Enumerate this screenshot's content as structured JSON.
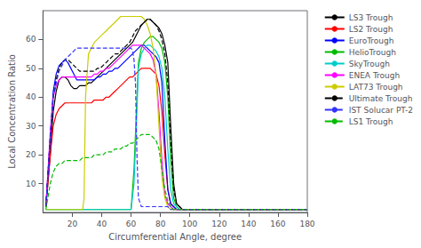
{
  "chart_data": {
    "type": "line",
    "xlabel": "Circumferential Angle, degree",
    "ylabel": "Local Concentration Ratio",
    "xlim": [
      0,
      180
    ],
    "ylim": [
      0,
      70
    ],
    "xticks": [
      20,
      40,
      60,
      80,
      100,
      120,
      140,
      160,
      180
    ],
    "yticks": [
      10,
      20,
      30,
      40,
      50,
      60
    ],
    "grid": false,
    "legend": "upper right",
    "series": [
      {
        "name": "LS3 Trough",
        "color": "#000000",
        "line_style": "solid",
        "x": [
          2,
          5,
          7,
          9,
          11,
          13,
          15,
          17,
          19,
          21,
          23,
          25,
          27,
          29,
          31,
          33,
          35,
          37,
          39,
          41,
          43,
          45,
          47,
          49,
          51,
          53,
          55,
          57,
          59,
          61,
          63,
          65,
          67,
          69,
          71,
          73,
          75,
          77,
          79,
          81,
          83,
          85,
          87,
          89,
          91,
          93,
          95,
          97,
          100,
          110,
          120,
          130,
          140,
          160,
          180
        ],
        "values": [
          2,
          20,
          35,
          42,
          46,
          47,
          47,
          46,
          44,
          43,
          43,
          44,
          44,
          44,
          45,
          45,
          46,
          47,
          48,
          49,
          50,
          51,
          52,
          53,
          54,
          55,
          56,
          57,
          58,
          59,
          61,
          63,
          65,
          66,
          67,
          67,
          66,
          65,
          64,
          62,
          58,
          52,
          30,
          10,
          3,
          2,
          1,
          1,
          1,
          1,
          1,
          1,
          1,
          1,
          1
        ]
      },
      {
        "name": "LS2 Trough",
        "color": "#ff0000",
        "line_style": "solid",
        "x": [
          2,
          5,
          7,
          9,
          11,
          13,
          15,
          17,
          19,
          21,
          23,
          25,
          27,
          29,
          31,
          33,
          35,
          37,
          39,
          41,
          43,
          45,
          47,
          49,
          51,
          53,
          55,
          57,
          59,
          61,
          63,
          65,
          67,
          69,
          71,
          73,
          75,
          77,
          79,
          81,
          83,
          85,
          87,
          89,
          91,
          95,
          100,
          110,
          120,
          140,
          160,
          180
        ],
        "values": [
          2,
          20,
          30,
          34,
          36,
          37,
          38,
          38,
          38,
          38,
          38,
          38,
          38,
          38,
          38,
          38,
          39,
          39,
          39,
          39,
          40,
          40,
          41,
          42,
          43,
          44,
          45,
          46,
          47,
          47,
          48,
          49,
          50,
          50,
          50,
          50,
          49,
          48,
          44,
          35,
          20,
          8,
          3,
          2,
          1,
          1,
          1,
          1,
          1,
          1,
          1,
          1
        ]
      },
      {
        "name": "EuroTrough",
        "color": "#0000ff",
        "line_style": "solid",
        "x": [
          2,
          5,
          7,
          9,
          11,
          13,
          15,
          17,
          19,
          21,
          23,
          25,
          27,
          29,
          31,
          33,
          35,
          37,
          39,
          41,
          43,
          45,
          47,
          49,
          51,
          53,
          55,
          57,
          59,
          61,
          63,
          65,
          67,
          69,
          71,
          73,
          75,
          77,
          79,
          81,
          83,
          85,
          87,
          89,
          91,
          95,
          100,
          110,
          120,
          140,
          160,
          180
        ],
        "values": [
          2,
          26,
          42,
          48,
          51,
          52,
          53,
          52,
          50,
          48,
          46,
          46,
          46,
          46,
          46,
          46,
          46,
          47,
          47,
          48,
          48,
          49,
          49,
          50,
          50,
          51,
          52,
          53,
          54,
          55,
          56,
          57,
          58,
          58,
          57,
          56,
          55,
          54,
          52,
          45,
          25,
          8,
          3,
          2,
          1,
          1,
          1,
          1,
          1,
          1,
          1,
          1
        ]
      },
      {
        "name": "HelioTrough",
        "color": "#00bb00",
        "line_style": "solid",
        "x": [
          2,
          5,
          10,
          20,
          30,
          40,
          50,
          55,
          60,
          62,
          64,
          65,
          67,
          69,
          71,
          73,
          75,
          77,
          79,
          81,
          83,
          85,
          87,
          89,
          91,
          93,
          95,
          97,
          100,
          105,
          110,
          115,
          120,
          130,
          140,
          160,
          180
        ],
        "values": [
          1,
          1,
          1,
          1,
          1,
          1,
          1,
          1,
          1,
          15,
          40,
          52,
          57,
          59,
          60,
          61,
          61,
          60,
          59,
          57,
          52,
          40,
          18,
          5,
          2,
          1,
          1,
          1,
          1,
          1,
          1,
          1,
          1,
          1,
          1,
          1,
          1
        ]
      },
      {
        "name": "SkyTrough",
        "color": "#00cccc",
        "line_style": "solid",
        "x": [
          2,
          5,
          10,
          20,
          30,
          40,
          50,
          55,
          60,
          62,
          64,
          65,
          67,
          69,
          71,
          73,
          75,
          77,
          79,
          81,
          83,
          85,
          87,
          89,
          91,
          93,
          95,
          97,
          100,
          105,
          110,
          115,
          120,
          130,
          140,
          160,
          180
        ],
        "values": [
          1,
          1,
          1,
          1,
          1,
          1,
          1,
          1,
          1,
          10,
          35,
          50,
          55,
          57,
          58,
          58,
          57,
          56,
          54,
          50,
          40,
          22,
          8,
          3,
          2,
          1,
          1,
          1,
          1,
          1,
          1,
          1,
          1,
          1,
          1,
          1,
          1
        ]
      },
      {
        "name": "ENEA Trough",
        "color": "#ff00ff",
        "line_style": "solid",
        "x": [
          2,
          5,
          7,
          9,
          11,
          13,
          15,
          17,
          19,
          21,
          23,
          25,
          27,
          29,
          31,
          33,
          35,
          37,
          39,
          41,
          43,
          45,
          47,
          49,
          51,
          53,
          55,
          57,
          59,
          61,
          63,
          65,
          67,
          69,
          71,
          73,
          75,
          77,
          79,
          81,
          83,
          85,
          87,
          89,
          91,
          95,
          100,
          110,
          120,
          140,
          160,
          180
        ],
        "values": [
          2,
          28,
          40,
          44,
          46,
          47,
          47,
          47,
          47,
          47,
          47,
          47,
          47,
          47,
          47,
          47,
          48,
          48,
          49,
          49,
          50,
          50,
          51,
          52,
          53,
          54,
          55,
          56,
          57,
          58,
          58,
          58,
          58,
          57,
          56,
          55,
          53,
          48,
          35,
          18,
          6,
          3,
          2,
          1,
          1,
          1,
          1,
          1,
          1,
          1,
          1,
          1
        ]
      },
      {
        "name": "LAT73 Trough",
        "color": "#cccc00",
        "line_style": "solid",
        "x": [
          2,
          5,
          7,
          9,
          11,
          13,
          15,
          17,
          19,
          21,
          23,
          25,
          27,
          28,
          29,
          31,
          33,
          35,
          37,
          39,
          41,
          43,
          45,
          47,
          49,
          51,
          53,
          55,
          57,
          59,
          61,
          63,
          65,
          67,
          69,
          71,
          73,
          75,
          77,
          79,
          81,
          83,
          85,
          87,
          89,
          91,
          95,
          100,
          110,
          115,
          120,
          130,
          140,
          160,
          180
        ],
        "values": [
          1,
          1,
          1,
          1,
          1,
          1,
          1,
          1,
          1,
          1,
          1,
          1,
          1,
          5,
          40,
          55,
          57,
          59,
          60,
          61,
          62,
          63,
          64,
          65,
          66,
          67,
          68,
          68,
          68,
          68,
          68,
          68,
          68,
          68,
          67,
          65,
          62,
          57,
          48,
          30,
          12,
          5,
          2,
          1,
          1,
          1,
          1,
          1,
          1,
          1,
          1,
          1,
          1,
          1,
          1
        ]
      },
      {
        "name": "Ultimate Trough",
        "color": "#000000",
        "line_style": "dashed",
        "x": [
          2,
          5,
          7,
          9,
          11,
          13,
          15,
          17,
          19,
          21,
          23,
          25,
          27,
          29,
          31,
          33,
          35,
          37,
          39,
          41,
          43,
          45,
          47,
          49,
          51,
          53,
          55,
          57,
          59,
          61,
          63,
          65,
          67,
          69,
          71,
          73,
          75,
          77,
          79,
          81,
          83,
          85,
          87,
          89,
          91,
          93,
          95,
          97,
          100,
          110,
          120,
          130,
          140,
          160,
          180
        ],
        "values": [
          2,
          26,
          40,
          46,
          50,
          52,
          53,
          53,
          52,
          51,
          50,
          49,
          49,
          49,
          49,
          49,
          49,
          50,
          50,
          51,
          52,
          53,
          54,
          55,
          55,
          56,
          57,
          58,
          59,
          61,
          63,
          64,
          65,
          66,
          67,
          67,
          66,
          65,
          63,
          60,
          55,
          45,
          25,
          8,
          3,
          2,
          1,
          1,
          1,
          1,
          1,
          1,
          1,
          1,
          1
        ]
      },
      {
        "name": "IST Solucar PT-2",
        "color": "#3333ff",
        "line_style": "dashed",
        "x": [
          2,
          5,
          7,
          9,
          11,
          13,
          15,
          17,
          19,
          21,
          23,
          25,
          27,
          29,
          31,
          33,
          35,
          37,
          39,
          41,
          43,
          45,
          47,
          49,
          51,
          53,
          55,
          57,
          59,
          60,
          61,
          62,
          63,
          64,
          65,
          67,
          69,
          71,
          73,
          75,
          77,
          79,
          81,
          83,
          85,
          87,
          89,
          91,
          95,
          100,
          110,
          120,
          140,
          160,
          180
        ],
        "values": [
          2,
          26,
          40,
          45,
          49,
          51,
          53,
          54,
          55,
          56,
          57,
          57,
          57,
          57,
          57,
          57,
          57,
          57,
          57,
          57,
          57,
          57,
          57,
          57,
          57,
          57,
          57,
          57,
          57,
          57,
          56,
          53,
          45,
          20,
          5,
          2,
          2,
          2,
          2,
          2,
          2,
          2,
          2,
          2,
          2,
          1,
          1,
          1,
          1,
          1,
          1,
          1,
          1,
          1,
          1
        ]
      },
      {
        "name": "LS1 Trough",
        "color": "#00bb00",
        "line_style": "dashed",
        "x": [
          2,
          5,
          7,
          9,
          11,
          13,
          15,
          17,
          19,
          21,
          23,
          25,
          27,
          29,
          31,
          33,
          35,
          37,
          39,
          41,
          43,
          45,
          47,
          49,
          51,
          53,
          55,
          57,
          59,
          61,
          63,
          65,
          67,
          69,
          71,
          73,
          75,
          77,
          79,
          81,
          83,
          85,
          87,
          89,
          91,
          95,
          100,
          110,
          120,
          130,
          140,
          160,
          180
        ],
        "values": [
          1,
          10,
          14,
          16,
          17,
          17,
          18,
          18,
          18,
          18,
          18,
          18,
          19,
          19,
          19,
          19,
          20,
          20,
          20,
          20,
          21,
          21,
          21,
          22,
          22,
          22,
          23,
          23,
          24,
          24,
          25,
          26,
          27,
          27,
          27,
          27,
          26,
          25,
          22,
          15,
          8,
          4,
          2,
          1,
          1,
          1,
          1,
          1,
          1,
          1,
          1,
          1,
          1
        ]
      }
    ]
  }
}
